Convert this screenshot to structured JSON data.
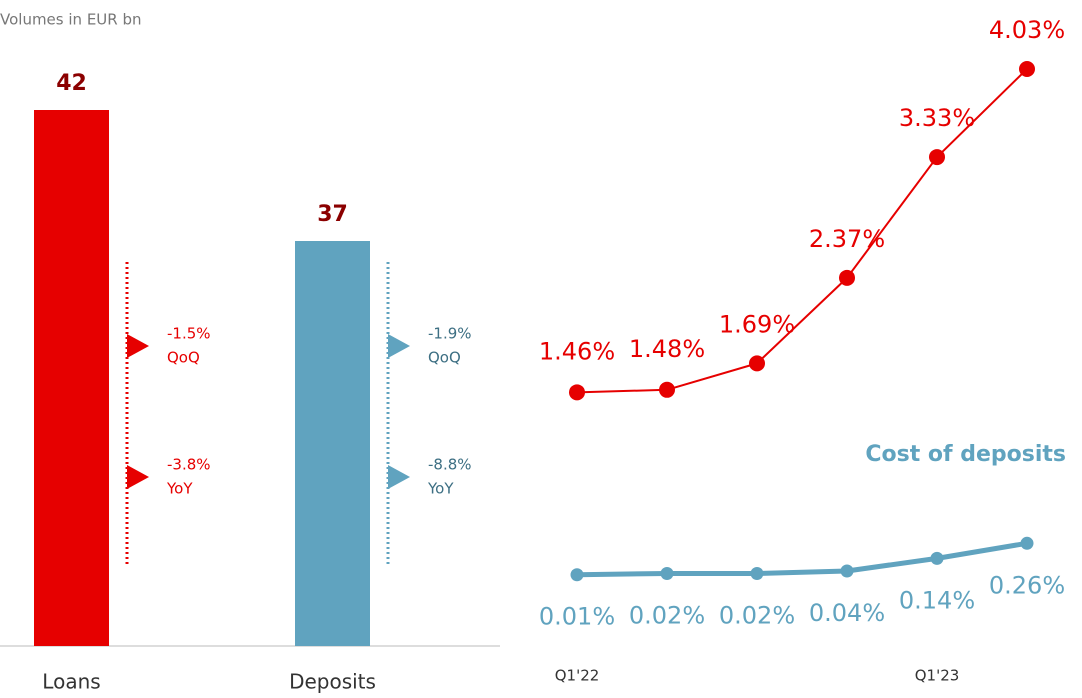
{
  "chart_data": [
    {
      "type": "bar",
      "subtitle": "Volumes in EUR bn",
      "categories": [
        "Loans",
        "Deposits"
      ],
      "values": [
        42,
        37
      ],
      "colors": [
        "#e60000",
        "#60a3bf"
      ],
      "value_label_color": "#8b0000",
      "annotations": [
        [
          {
            "change": "-1.5%",
            "period": "QoQ"
          },
          {
            "change": "-3.8%",
            "period": "YoY"
          }
        ],
        [
          {
            "change": "-1.9%",
            "period": "QoQ"
          },
          {
            "change": "-8.8%",
            "period": "YoY"
          }
        ]
      ]
    },
    {
      "type": "line",
      "categories": [
        "Q1'22",
        null,
        null,
        null,
        "Q1'23",
        null
      ],
      "series": [
        {
          "color": "#e60000",
          "values": [
            1.46,
            1.48,
            1.69,
            2.37,
            3.33,
            4.03
          ],
          "value_labels": [
            "1.46%",
            "1.48%",
            "1.69%",
            "2.37%",
            "3.33%",
            "4.03%"
          ]
        },
        {
          "name": "Cost of deposits",
          "color": "#60a3bf",
          "values": [
            0.01,
            0.02,
            0.02,
            0.04,
            0.14,
            0.26
          ],
          "value_labels": [
            "0.01%",
            "0.02%",
            "0.02%",
            "0.04%",
            "0.14%",
            "0.26%"
          ]
        }
      ]
    }
  ]
}
